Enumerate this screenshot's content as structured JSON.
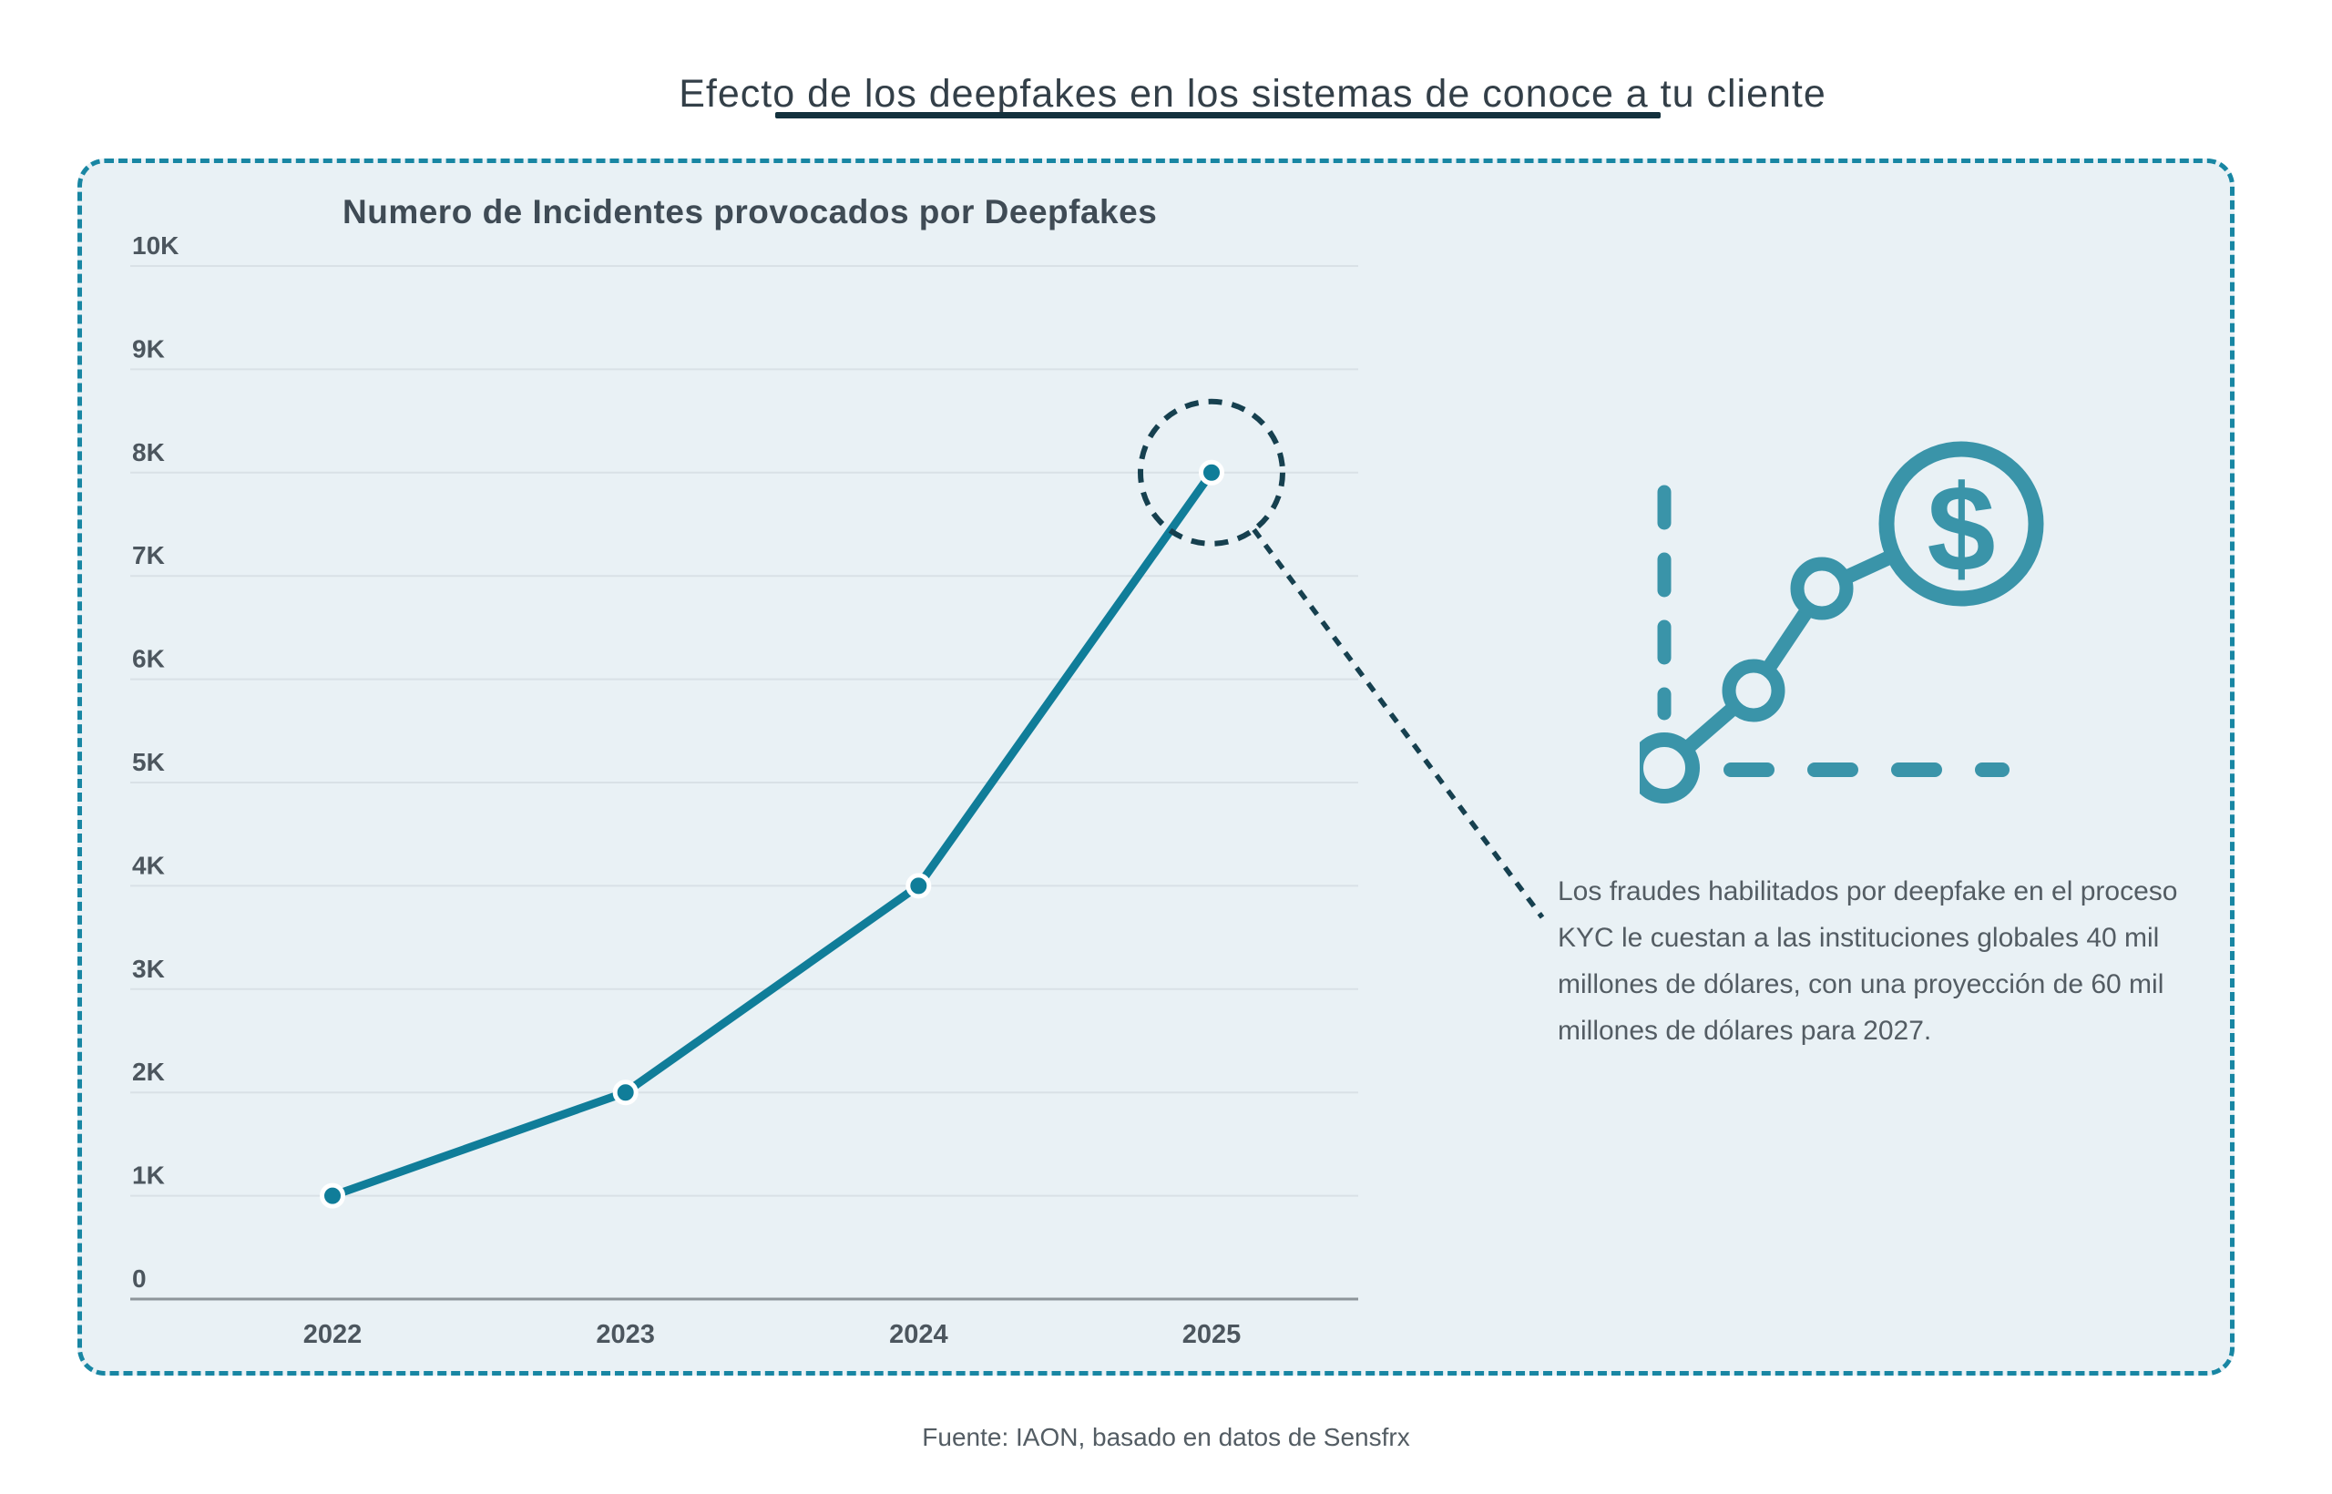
{
  "page": {
    "title": "Efecto de los deepfakes en los sistemas de conoce a tu cliente",
    "source": "Fuente: IAON, basado en datos de Sensfrx"
  },
  "panel": {
    "annotation_text": "Los fraudes habilitados por deepfake en el proceso KYC le cuestan a las instituciones globales 40 mil millones de dólares, con una proyección de 60 mil millones de dólares para 2027.",
    "icon": "growth-chart-dollar-icon"
  },
  "chart_data": {
    "type": "line",
    "title": "Numero de Incidentes provocados por Deepfakes",
    "categories": [
      "2022",
      "2023",
      "2024",
      "2025"
    ],
    "values": [
      1000,
      2000,
      4000,
      8000
    ],
    "series": [
      {
        "name": "Incidentes provocados por deepfakes",
        "values": [
          1000,
          2000,
          4000,
          8000
        ]
      }
    ],
    "yticks": [
      {
        "label": "10K",
        "value": 10000
      },
      {
        "label": "9K",
        "value": 9000
      },
      {
        "label": "8K",
        "value": 8000
      },
      {
        "label": "7K",
        "value": 7000
      },
      {
        "label": "6K",
        "value": 6000
      },
      {
        "label": "5K",
        "value": 5000
      },
      {
        "label": "4K",
        "value": 4000
      },
      {
        "label": "3K",
        "value": 3000
      },
      {
        "label": "2K",
        "value": 2000
      },
      {
        "label": "1K",
        "value": 1000
      },
      {
        "label": "0",
        "value": 0
      }
    ],
    "xlabel": "",
    "ylabel": "",
    "ylim": [
      0,
      10000
    ],
    "grid": true,
    "legend": "none",
    "highlight": {
      "index": 3,
      "style": "dashed-circle-with-leader-line"
    }
  },
  "colors": {
    "accent_teal": "#107D99",
    "icon_teal": "#3A94A9",
    "dark_navy": "#16404F",
    "panel_bg": "#E9F1F5",
    "panel_border": "#1886A3",
    "gridline": "#D9E1E6",
    "axis_line": "#8D959A",
    "tick_text": "#4C565E",
    "title_text": "#3F4B55",
    "text_dark": "#333F48",
    "text_medium": "#535C63",
    "underline": "#13313D",
    "point_ring": "#FFFFFF"
  }
}
